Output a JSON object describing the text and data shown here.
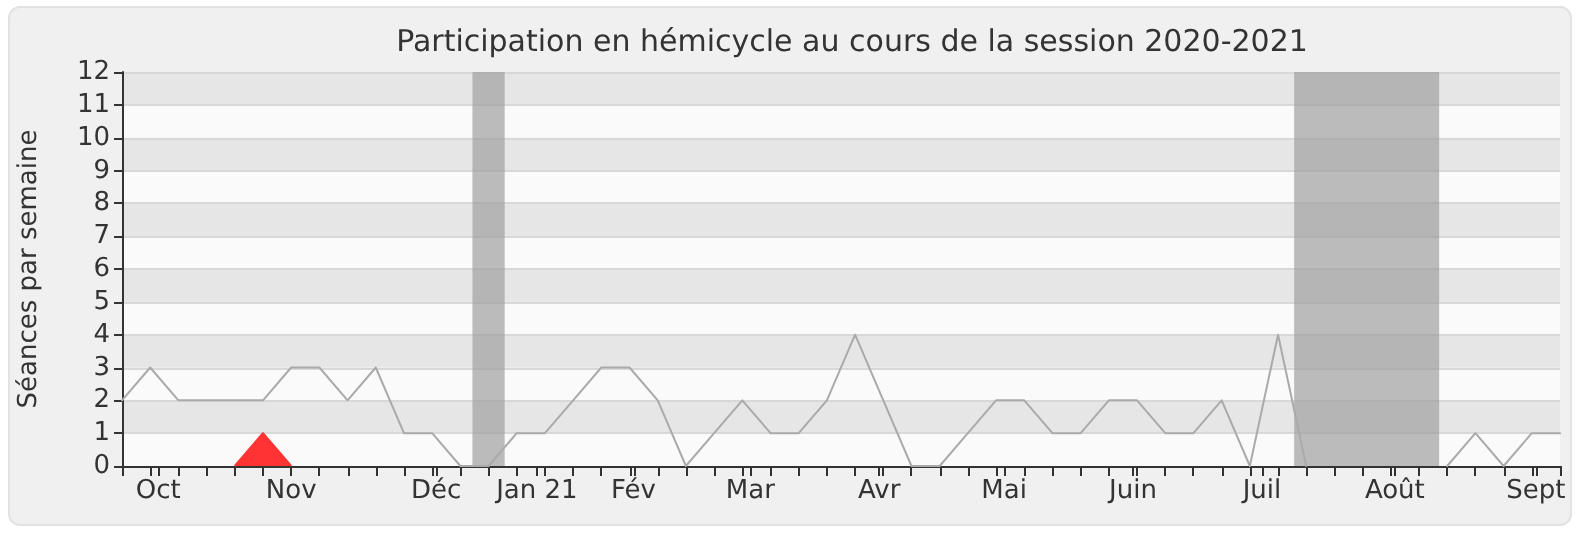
{
  "chart_data": {
    "type": "line",
    "title": "Participation en hémicycle au cours de la session 2020-2021",
    "ylabel": "Séances par semaine",
    "x": [
      "2020-09-28",
      "2020-10-05",
      "2020-10-12",
      "2020-10-19",
      "2020-10-26",
      "2020-11-02",
      "2020-11-09",
      "2020-11-16",
      "2020-11-23",
      "2020-11-30",
      "2020-12-07",
      "2020-12-14",
      "2020-12-21",
      "2020-12-28",
      "2021-01-04",
      "2021-01-11",
      "2021-01-18",
      "2021-01-25",
      "2021-02-01",
      "2021-02-08",
      "2021-02-15",
      "2021-02-22",
      "2021-03-01",
      "2021-03-08",
      "2021-03-15",
      "2021-03-22",
      "2021-03-29",
      "2021-04-05",
      "2021-04-12",
      "2021-04-19",
      "2021-04-26",
      "2021-05-03",
      "2021-05-10",
      "2021-05-17",
      "2021-05-24",
      "2021-05-31",
      "2021-06-07",
      "2021-06-14",
      "2021-06-21",
      "2021-06-28",
      "2021-07-05",
      "2021-07-12",
      "2021-07-19",
      "2021-07-26",
      "2021-08-02",
      "2021-08-09",
      "2021-08-16",
      "2021-08-23",
      "2021-08-30",
      "2021-09-06",
      "2021-09-13",
      "2021-09-20"
    ],
    "series": [
      {
        "color": "#aaaaaa",
        "values": [
          2,
          3,
          2,
          2,
          2,
          2,
          3,
          3,
          2,
          3,
          1,
          1,
          0,
          0,
          1,
          1,
          2,
          3,
          3,
          2,
          0,
          1,
          2,
          1,
          1,
          2,
          4,
          2,
          0,
          0,
          1,
          2,
          2,
          1,
          1,
          2,
          2,
          1,
          1,
          2,
          0,
          4,
          0,
          null,
          null,
          null,
          null,
          0,
          1,
          0,
          1,
          1
        ]
      },
      {
        "type": "area",
        "color": "#ff3333",
        "x": [
          "2020-10-26",
          "2020-11-02",
          "2020-11-09"
        ],
        "values": [
          0,
          1,
          0
        ]
      }
    ],
    "xlim": [
      "2020-09-28",
      "2021-09-20"
    ],
    "ylim": [
      0,
      12
    ],
    "xticks": [
      {
        "value": "2020-09-28",
        "label": null
      },
      {
        "value": "2020-10-05",
        "label": null
      },
      {
        "value": "2020-10-12",
        "label": null
      },
      {
        "value": "2020-10-19",
        "label": null
      },
      {
        "value": "2020-10-26",
        "label": null
      },
      {
        "value": "2020-11-02",
        "label": null
      },
      {
        "value": "2020-11-09",
        "label": null
      },
      {
        "value": "2020-11-16",
        "label": null
      },
      {
        "value": "2020-11-23",
        "label": null
      },
      {
        "value": "2020-11-30",
        "label": null
      },
      {
        "value": "2020-12-07",
        "label": null
      },
      {
        "value": "2020-12-14",
        "label": null
      },
      {
        "value": "2020-12-21",
        "label": null
      },
      {
        "value": "2020-12-28",
        "label": null
      },
      {
        "value": "2021-01-04",
        "label": null
      },
      {
        "value": "2021-01-11",
        "label": null
      },
      {
        "value": "2021-01-18",
        "label": null
      },
      {
        "value": "2021-01-25",
        "label": null
      },
      {
        "value": "2021-02-01",
        "label": null
      },
      {
        "value": "2021-02-08",
        "label": null
      },
      {
        "value": "2021-02-15",
        "label": null
      },
      {
        "value": "2021-02-22",
        "label": null
      },
      {
        "value": "2021-03-01",
        "label": null
      },
      {
        "value": "2021-03-08",
        "label": null
      },
      {
        "value": "2021-03-15",
        "label": null
      },
      {
        "value": "2021-03-22",
        "label": null
      },
      {
        "value": "2021-03-29",
        "label": null
      },
      {
        "value": "2021-04-05",
        "label": null
      },
      {
        "value": "2021-04-12",
        "label": null
      },
      {
        "value": "2021-04-19",
        "label": null
      },
      {
        "value": "2021-04-26",
        "label": null
      },
      {
        "value": "2021-05-03",
        "label": null
      },
      {
        "value": "2021-05-10",
        "label": null
      },
      {
        "value": "2021-05-17",
        "label": null
      },
      {
        "value": "2021-05-24",
        "label": null
      },
      {
        "value": "2021-05-31",
        "label": null
      },
      {
        "value": "2021-06-07",
        "label": null
      },
      {
        "value": "2021-06-14",
        "label": null
      },
      {
        "value": "2021-06-21",
        "label": null
      },
      {
        "value": "2021-06-28",
        "label": null
      },
      {
        "value": "2021-07-05",
        "label": null
      },
      {
        "value": "2021-07-12",
        "label": null
      },
      {
        "value": "2021-07-19",
        "label": null
      },
      {
        "value": "2021-07-26",
        "label": null
      },
      {
        "value": "2021-08-02",
        "label": null
      },
      {
        "value": "2021-08-09",
        "label": null
      },
      {
        "value": "2021-08-16",
        "label": null
      },
      {
        "value": "2021-08-23",
        "label": null
      },
      {
        "value": "2021-08-30",
        "label": null
      },
      {
        "value": "2021-09-06",
        "label": null
      },
      {
        "value": "2021-09-13",
        "label": null
      },
      {
        "value": "2021-09-20",
        "label": null
      },
      {
        "value": "2020-10-07",
        "label": "Oct"
      },
      {
        "value": "2020-11-09",
        "label": "Nov"
      },
      {
        "value": "2020-12-15",
        "label": "Déc"
      },
      {
        "value": "2021-01-09",
        "label": "Jan 21"
      },
      {
        "value": "2021-02-02",
        "label": "Fév"
      },
      {
        "value": "2021-03-03",
        "label": "Mar"
      },
      {
        "value": "2021-04-04",
        "label": "Avr"
      },
      {
        "value": "2021-05-05",
        "label": "Mai"
      },
      {
        "value": "2021-06-06",
        "label": "Juin"
      },
      {
        "value": "2021-07-08",
        "label": "Juil"
      },
      {
        "value": "2021-08-10",
        "label": "Août"
      },
      {
        "value": "2021-09-14",
        "label": "Sept"
      }
    ],
    "yticks": [
      0,
      1,
      2,
      3,
      4,
      5,
      6,
      7,
      8,
      9,
      10,
      11,
      12
    ],
    "bands": [
      {
        "axis": "x",
        "from": "2020-12-24",
        "to": "2021-01-01",
        "color": "#a0a0a0"
      },
      {
        "axis": "x",
        "from": "2021-07-16",
        "to": "2021-08-21",
        "color": "#a0a0a0"
      }
    ],
    "grid": "y",
    "marker": "none",
    "line_style": "solid"
  }
}
